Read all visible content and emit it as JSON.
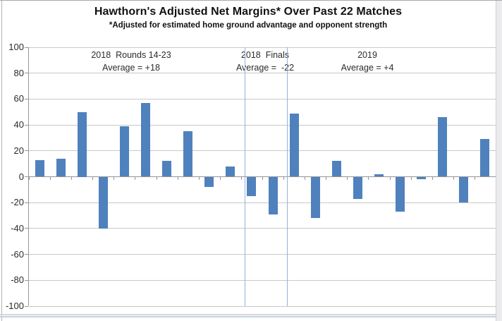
{
  "chart_data": {
    "type": "bar",
    "title": "Hawthorn's Adjusted Net Margins* Over Past 22 Matches",
    "subtitle": "*Adjusted for estimated home ground advantage and opponent strength",
    "values": [
      13,
      14,
      50,
      -40,
      39,
      57,
      12,
      35,
      -8,
      8,
      -15,
      -29,
      49,
      -32,
      12,
      -17,
      2,
      -27,
      -2,
      46,
      -20,
      29
    ],
    "ylim": [
      -100,
      100
    ],
    "y_ticks": [
      100,
      80,
      60,
      40,
      20,
      0,
      -20,
      -40,
      -60,
      -80,
      -100
    ],
    "grid": true,
    "legend": "none",
    "bar_color": "#4F81BD",
    "separator_color": "#94b2d6",
    "separator_before_indices": [
      10,
      12
    ],
    "groups": [
      {
        "label": "2018  Rounds 14-23",
        "average_label": "Average = +18",
        "average": 18,
        "start_index": 0,
        "end_index": 9
      },
      {
        "label": "2018  Finals",
        "average_label": "Average =  -22",
        "average": -22,
        "start_index": 10,
        "end_index": 11
      },
      {
        "label": "2019",
        "average_label": "Average = +4",
        "average": 4,
        "start_index": 12,
        "end_index": 21
      }
    ]
  }
}
